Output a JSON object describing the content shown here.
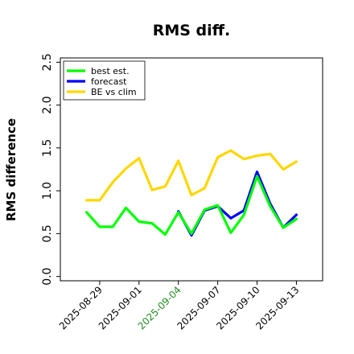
{
  "chart_data": {
    "type": "line",
    "title": "RMS diff.",
    "xlabel": "",
    "ylabel": "RMS difference",
    "ylim": [
      -0.05,
      2.55
    ],
    "xlim": [
      "2025-08-26",
      "2025-09-15"
    ],
    "yticks": [
      "0.0",
      "0.5",
      "1.0",
      "1.5",
      "2.0",
      "2.5"
    ],
    "xticks": [
      {
        "label": "2025-08-29",
        "color": "#000000"
      },
      {
        "label": "2025-09-01",
        "color": "#000000"
      },
      {
        "label": "2025-09-04",
        "color": "#228B22"
      },
      {
        "label": "2025-09-07",
        "color": "#000000"
      },
      {
        "label": "2025-09-10",
        "color": "#000000"
      },
      {
        "label": "2025-09-13",
        "color": "#000000"
      }
    ],
    "grid": false,
    "legend_position": "top-left",
    "x": [
      "2025-08-28",
      "2025-08-29",
      "2025-08-30",
      "2025-08-31",
      "2025-09-01",
      "2025-09-02",
      "2025-09-03",
      "2025-09-04",
      "2025-09-05",
      "2025-09-06",
      "2025-09-07",
      "2025-09-08",
      "2025-09-09",
      "2025-09-10",
      "2025-09-11",
      "2025-09-12",
      "2025-09-13"
    ],
    "series": [
      {
        "name": "best est.",
        "color": "#00ff00",
        "values": [
          0.75,
          0.58,
          0.58,
          0.8,
          0.64,
          0.62,
          0.49,
          0.75,
          0.5,
          0.78,
          0.83,
          0.51,
          0.72,
          1.17,
          0.82,
          0.57,
          0.67
        ]
      },
      {
        "name": "forecast",
        "color": "#0000ff",
        "values": [
          null,
          null,
          null,
          null,
          null,
          null,
          null,
          0.76,
          0.48,
          0.77,
          0.82,
          0.68,
          0.77,
          1.22,
          0.85,
          0.57,
          0.72
        ]
      },
      {
        "name": "BE vs clim",
        "color": "#ffd700",
        "values": [
          0.89,
          0.89,
          1.1,
          1.26,
          1.38,
          1.01,
          1.05,
          1.35,
          0.95,
          1.03,
          1.39,
          1.47,
          1.37,
          1.41,
          1.43,
          1.25,
          1.34
        ]
      }
    ]
  }
}
